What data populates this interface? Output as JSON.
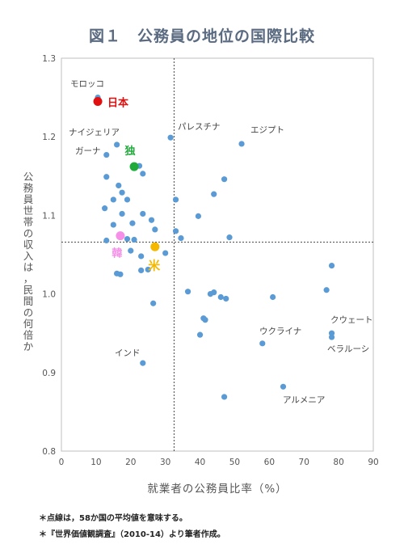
{
  "title": "図１　公務員の地位の国際比較",
  "footnotes": [
    "＊点線は，58か国の平均値を意味する。",
    "＊『世界価値観調査』（2010-14）より筆者作成。"
  ],
  "chart_data": {
    "type": "scatter",
    "title": "図１　公務員の地位の国際比較",
    "xlabel": "就業者の公務員比率（%）",
    "ylabel": "公務員世帯の収入は，民間の何倍か",
    "xlim": [
      0,
      90
    ],
    "ylim": [
      0.8,
      1.3
    ],
    "x_ticks": [
      "0",
      "10",
      "20",
      "30",
      "40",
      "50",
      "60",
      "70",
      "80",
      "90"
    ],
    "y_ticks": [
      "0.8",
      "0.9",
      "1.0",
      "1.1",
      "1.2",
      "1.3"
    ],
    "grid": false,
    "averages": {
      "x": 32.5,
      "y": 1.066
    },
    "colors": {
      "points": "#5b9bd5",
      "japan": "#e01010",
      "germany": "#1faa3a",
      "korea": "#f58fe8",
      "usa": "#f5b800"
    },
    "points": [
      [
        10.5,
        1.25
      ],
      [
        16,
        1.19
      ],
      [
        13,
        1.177
      ],
      [
        22.5,
        1.163
      ],
      [
        23.5,
        1.153
      ],
      [
        31.5,
        1.199
      ],
      [
        52,
        1.191
      ],
      [
        13,
        1.149
      ],
      [
        16.5,
        1.138
      ],
      [
        17.5,
        1.129
      ],
      [
        15,
        1.12
      ],
      [
        19,
        1.12
      ],
      [
        20.5,
        1.09
      ],
      [
        12.5,
        1.109
      ],
      [
        17.5,
        1.102
      ],
      [
        23.5,
        1.102
      ],
      [
        26,
        1.094
      ],
      [
        15,
        1.088
      ],
      [
        27,
        1.082
      ],
      [
        13,
        1.068
      ],
      [
        19,
        1.07
      ],
      [
        21,
        1.069
      ],
      [
        20,
        1.055
      ],
      [
        23,
        1.048
      ],
      [
        30,
        1.052
      ],
      [
        25,
        1.031
      ],
      [
        16,
        1.026
      ],
      [
        17,
        1.025
      ],
      [
        23,
        1.03
      ],
      [
        26.5,
        0.988
      ],
      [
        33,
        1.12
      ],
      [
        39.5,
        1.099
      ],
      [
        44,
        1.127
      ],
      [
        47,
        1.146
      ],
      [
        33,
        1.08
      ],
      [
        34.5,
        1.071
      ],
      [
        48.5,
        1.072
      ],
      [
        36.5,
        1.003
      ],
      [
        43,
        1.0
      ],
      [
        44,
        1.002
      ],
      [
        46,
        0.996
      ],
      [
        47.5,
        0.994
      ],
      [
        61,
        0.996
      ],
      [
        76.5,
        1.005
      ],
      [
        78,
        1.036
      ],
      [
        41,
        0.969
      ],
      [
        41.5,
        0.967
      ],
      [
        40,
        0.948
      ],
      [
        58,
        0.937
      ],
      [
        78,
        0.95
      ],
      [
        78,
        0.945
      ],
      [
        23.5,
        0.912
      ],
      [
        64,
        0.882
      ],
      [
        47,
        0.869
      ]
    ],
    "highlighted": [
      {
        "name": "日本",
        "x": 10.5,
        "y": 1.245
      },
      {
        "name": "独",
        "x": 21,
        "y": 1.162
      },
      {
        "name": "韓",
        "x": 17,
        "y": 1.074
      },
      {
        "name": "米",
        "x": 27,
        "y": 1.06
      }
    ],
    "annotations": [
      "モロッコ",
      "ナイジェリア",
      "ガーナ",
      "パレスチナ",
      "エジプト",
      "インド",
      "ウクライナ",
      "クウェート",
      "ベラルーシ",
      "アルメニア"
    ]
  }
}
